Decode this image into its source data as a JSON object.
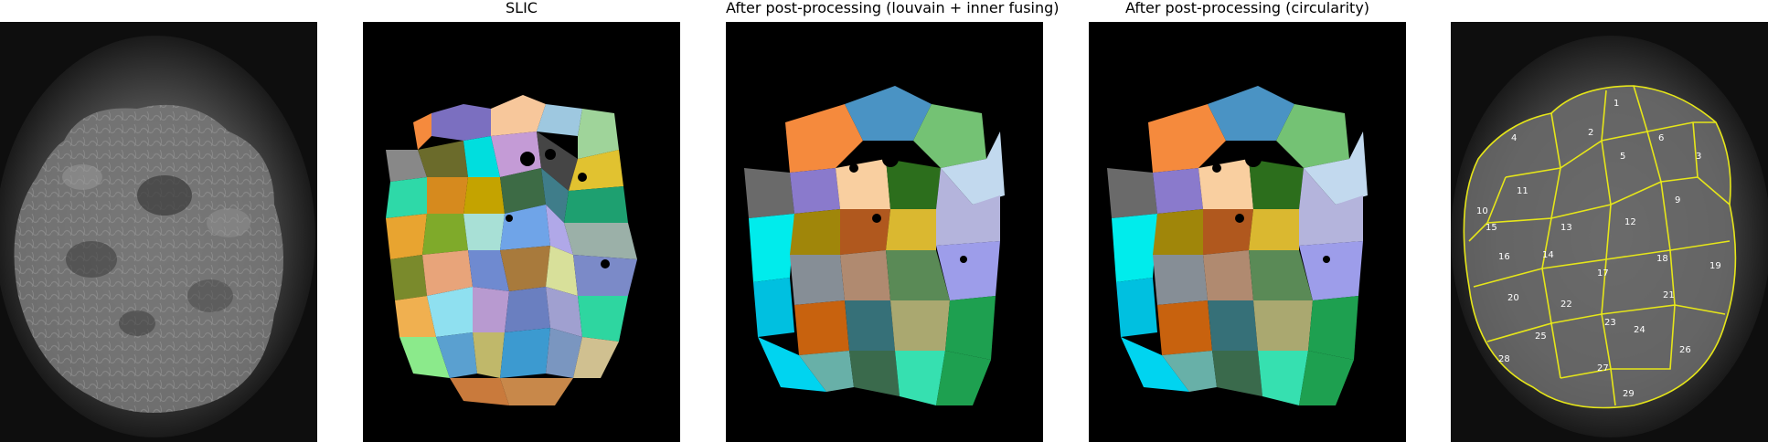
{
  "panels": [
    {
      "id": "raw",
      "title": ""
    },
    {
      "id": "slic",
      "title": "SLIC"
    },
    {
      "id": "louvain",
      "title": "After post-processing (louvain + inner fusing)"
    },
    {
      "id": "circularity",
      "title": "After post-processing (circularity)"
    },
    {
      "id": "overlay",
      "title": ""
    }
  ],
  "overlay_labels": [
    "1",
    "2",
    "3",
    "4",
    "5",
    "6",
    "9",
    "10",
    "11",
    "12",
    "13",
    "14",
    "15",
    "16",
    "17",
    "18",
    "19",
    "20",
    "21",
    "22",
    "23",
    "24",
    "25",
    "26",
    "27",
    "28",
    "29"
  ],
  "colors": {
    "background": "#000000",
    "contour": "#e6e619",
    "label": "#ffffff"
  }
}
